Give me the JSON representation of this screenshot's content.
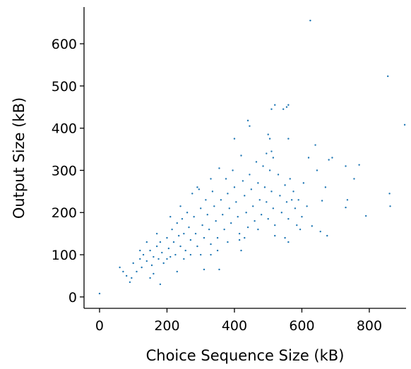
{
  "chart_data": {
    "type": "scatter",
    "x_label": "Choice Sequence Size (kB)",
    "y_label": "Output Size (kB)",
    "color": "#1f77b4",
    "xlim": [
      -46,
      909
    ],
    "ylim": [
      -27,
      687
    ],
    "xticks": [
      0,
      200,
      400,
      600,
      800
    ],
    "yticks": [
      0,
      100,
      200,
      300,
      400,
      500,
      600
    ],
    "x": [
      0,
      625,
      855,
      905,
      860,
      862,
      790,
      755,
      730,
      770,
      735,
      730,
      690,
      680,
      640,
      670,
      660,
      645,
      620,
      615,
      605,
      600,
      630,
      655,
      675,
      545,
      555,
      560,
      520,
      510,
      440,
      445,
      400,
      500,
      505,
      560,
      495,
      510,
      515,
      565,
      570,
      550,
      560,
      520,
      470,
      430,
      415,
      380,
      355,
      310,
      180,
      150,
      90,
      95,
      60,
      70,
      80,
      100,
      110,
      120,
      125,
      130,
      140,
      150,
      155,
      160,
      170,
      175,
      180,
      185,
      190,
      200,
      205,
      210,
      215,
      220,
      225,
      230,
      235,
      240,
      245,
      250,
      255,
      260,
      265,
      270,
      275,
      280,
      285,
      290,
      295,
      300,
      305,
      310,
      315,
      320,
      325,
      330,
      335,
      340,
      345,
      350,
      355,
      360,
      365,
      370,
      375,
      380,
      385,
      390,
      395,
      400,
      405,
      410,
      415,
      420,
      425,
      430,
      435,
      440,
      445,
      450,
      455,
      460,
      465,
      470,
      475,
      480,
      485,
      490,
      495,
      500,
      505,
      510,
      515,
      520,
      530,
      535,
      540,
      550,
      555,
      560,
      575,
      580,
      585,
      590,
      595,
      140,
      160,
      200,
      250,
      270,
      230,
      330,
      300,
      350,
      420,
      120,
      170,
      210,
      240,
      290,
      330
    ],
    "y": [
      8,
      655,
      523,
      408,
      245,
      215,
      192,
      280,
      310,
      313,
      230,
      212,
      330,
      325,
      360,
      260,
      228,
      300,
      330,
      215,
      270,
      190,
      168,
      155,
      145,
      445,
      450,
      455,
      455,
      445,
      418,
      405,
      375,
      385,
      375,
      375,
      340,
      345,
      330,
      280,
      230,
      140,
      130,
      145,
      160,
      140,
      135,
      130,
      65,
      65,
      30,
      45,
      35,
      45,
      70,
      60,
      50,
      80,
      60,
      90,
      70,
      100,
      85,
      110,
      75,
      95,
      120,
      90,
      130,
      105,
      80,
      140,
      115,
      95,
      160,
      130,
      100,
      175,
      145,
      120,
      185,
      150,
      110,
      200,
      165,
      135,
      245,
      190,
      150,
      120,
      255,
      210,
      170,
      140,
      230,
      195,
      160,
      125,
      250,
      215,
      180,
      140,
      305,
      230,
      195,
      160,
      280,
      245,
      210,
      175,
      300,
      260,
      225,
      190,
      150,
      335,
      275,
      240,
      200,
      165,
      290,
      255,
      215,
      180,
      320,
      270,
      230,
      195,
      310,
      260,
      225,
      185,
      300,
      250,
      210,
      170,
      290,
      240,
      200,
      265,
      225,
      185,
      250,
      210,
      170,
      230,
      160,
      130,
      55,
      90,
      90,
      100,
      60,
      100,
      100,
      110,
      110,
      110,
      150,
      190,
      215,
      260,
      280
    ]
  }
}
